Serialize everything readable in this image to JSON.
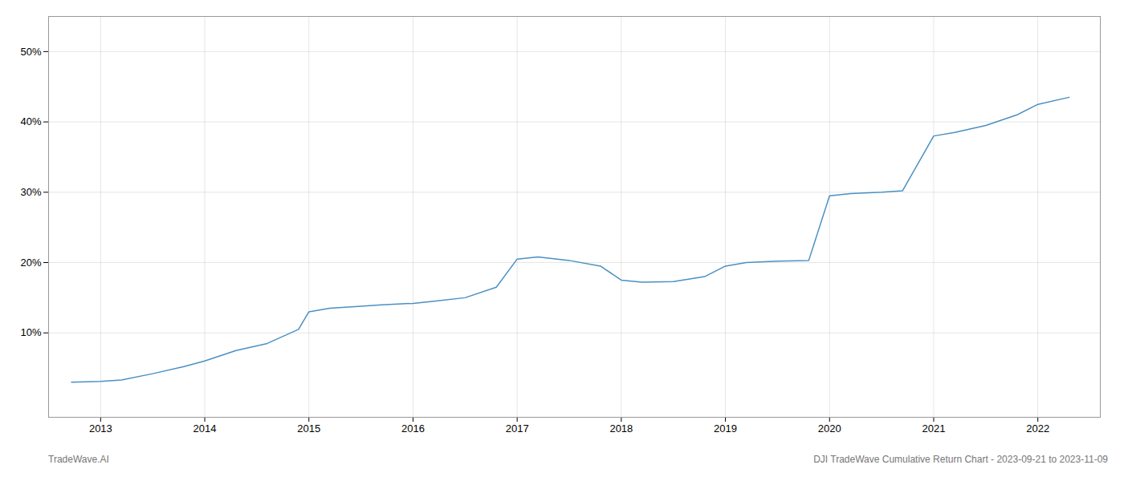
{
  "chart_data": {
    "type": "line",
    "x": [
      2012.72,
      2013.0,
      2013.2,
      2013.5,
      2013.8,
      2014.0,
      2014.3,
      2014.6,
      2014.9,
      2015.0,
      2015.2,
      2015.5,
      2015.7,
      2016.0,
      2016.2,
      2016.5,
      2016.8,
      2017.0,
      2017.2,
      2017.5,
      2017.8,
      2018.0,
      2018.2,
      2018.5,
      2018.8,
      2019.0,
      2019.2,
      2019.5,
      2019.8,
      2020.0,
      2020.2,
      2020.5,
      2020.7,
      2021.0,
      2021.2,
      2021.5,
      2021.8,
      2022.0,
      2022.3
    ],
    "values": [
      3.0,
      3.1,
      3.3,
      4.2,
      5.2,
      6.0,
      7.5,
      8.5,
      10.5,
      13.0,
      13.5,
      13.8,
      14.0,
      14.2,
      14.5,
      15.0,
      16.5,
      20.5,
      20.8,
      20.3,
      19.5,
      17.5,
      17.2,
      17.3,
      18.0,
      19.5,
      20.0,
      20.2,
      20.3,
      29.5,
      29.8,
      30.0,
      30.2,
      38.0,
      38.5,
      39.5,
      41.0,
      42.5,
      43.5
    ],
    "color": "#4a90c4",
    "xlim": [
      2012.5,
      2022.6
    ],
    "ylim": [
      -2,
      55
    ],
    "xticks": [
      2013,
      2014,
      2015,
      2016,
      2017,
      2018,
      2019,
      2020,
      2021,
      2022
    ],
    "yticks": [
      {
        "value": 10,
        "label": "10%"
      },
      {
        "value": 20,
        "label": "20%"
      },
      {
        "value": 30,
        "label": "30%"
      },
      {
        "value": 40,
        "label": "40%"
      },
      {
        "value": 50,
        "label": "50%"
      }
    ],
    "grid": true,
    "annotations": [
      "TradeWave.AI",
      "DJI TradeWave Cumulative Return Chart - 2023-09-21 to 2023-11-09"
    ]
  }
}
